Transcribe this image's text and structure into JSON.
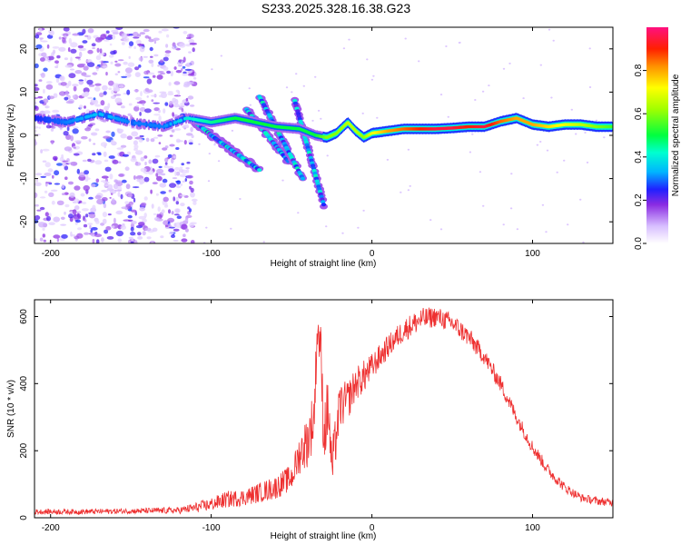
{
  "title": "S233.2025.328.16.38.G23",
  "chart_data": [
    {
      "type": "heatmap",
      "xlabel": "Height of straight line (km)",
      "ylabel": "Frequency (Hz)",
      "xlim": [
        -210,
        150
      ],
      "ylim": [
        -25,
        25
      ],
      "xticks": [
        -200,
        -100,
        0,
        100
      ],
      "yticks": [
        -20,
        -10,
        0,
        10,
        20
      ],
      "colorbar": {
        "label": "Normalized spectral amplitude",
        "range": [
          0,
          1
        ],
        "ticks": [
          0.0,
          0.2,
          0.4,
          0.6,
          0.8
        ]
      },
      "noise_region": {
        "x": [
          -210,
          -110
        ],
        "y": [
          -25,
          25
        ]
      },
      "ridges": [
        {
          "x0": -110,
          "x1": -82,
          "y0": 3,
          "y1": -5
        },
        {
          "x0": -100,
          "x1": -70,
          "y0": 0,
          "y1": -8
        },
        {
          "x0": -78,
          "x1": -52,
          "y0": 6,
          "y1": -6
        },
        {
          "x0": -70,
          "x1": -43,
          "y0": 9,
          "y1": -10
        },
        {
          "x0": -48,
          "x1": -30,
          "y0": 8,
          "y1": -16
        }
      ],
      "trace": {
        "x": [
          -210,
          -190,
          -170,
          -150,
          -130,
          -115,
          -100,
          -85,
          -60,
          -45,
          -35,
          -28,
          -22,
          -15,
          -10,
          -5,
          0,
          10,
          20,
          30,
          40,
          50,
          60,
          70,
          80,
          90,
          100,
          110,
          120,
          130,
          140,
          150
        ],
        "y": [
          4,
          3,
          5,
          3,
          2,
          4,
          3,
          4,
          2,
          1.5,
          0,
          -0.5,
          0.5,
          3,
          1,
          -0.5,
          0.5,
          1,
          1.5,
          1.5,
          1.5,
          1.7,
          2,
          2,
          3.2,
          4,
          2.5,
          2,
          2.5,
          2.5,
          2,
          2
        ],
        "strength": [
          0.25,
          0.3,
          0.35,
          0.3,
          0.3,
          0.4,
          0.45,
          0.5,
          0.5,
          0.5,
          0.5,
          0.6,
          0.6,
          0.65,
          0.65,
          0.6,
          0.7,
          0.8,
          0.85,
          0.9,
          0.95,
          0.95,
          0.9,
          0.95,
          0.85,
          0.8,
          0.8,
          0.75,
          0.7,
          0.65,
          0.6,
          0.55
        ]
      }
    },
    {
      "type": "line",
      "xlabel": "Height of straight line (km)",
      "ylabel": "SNR (10 * v/v)",
      "xlim": [
        -210,
        150
      ],
      "ylim": [
        0,
        650
      ],
      "xticks": [
        -200,
        -100,
        0,
        100
      ],
      "yticks": [
        0,
        200,
        400,
        600
      ],
      "color": "#ee3030",
      "series": [
        {
          "name": "SNR",
          "x": [
            -210,
            -180,
            -150,
            -120,
            -110,
            -100,
            -90,
            -80,
            -70,
            -60,
            -50,
            -45,
            -40,
            -36,
            -34,
            -32,
            -30,
            -27,
            -25,
            -20,
            -15,
            -10,
            -5,
            0,
            10,
            20,
            30,
            40,
            50,
            60,
            70,
            80,
            90,
            100,
            110,
            120,
            130,
            140,
            150
          ],
          "y": [
            18,
            18,
            20,
            22,
            30,
            40,
            55,
            60,
            75,
            90,
            120,
            190,
            230,
            300,
            560,
            520,
            250,
            330,
            140,
            330,
            350,
            400,
            420,
            450,
            510,
            560,
            590,
            600,
            580,
            540,
            480,
            400,
            300,
            210,
            140,
            90,
            60,
            50,
            45
          ],
          "noise": [
            8,
            8,
            8,
            10,
            15,
            20,
            25,
            25,
            30,
            35,
            40,
            60,
            80,
            90,
            60,
            80,
            100,
            100,
            80,
            70,
            60,
            50,
            50,
            40,
            35,
            35,
            35,
            30,
            30,
            30,
            25,
            25,
            22,
            20,
            18,
            15,
            12,
            12,
            12
          ]
        }
      ]
    }
  ]
}
